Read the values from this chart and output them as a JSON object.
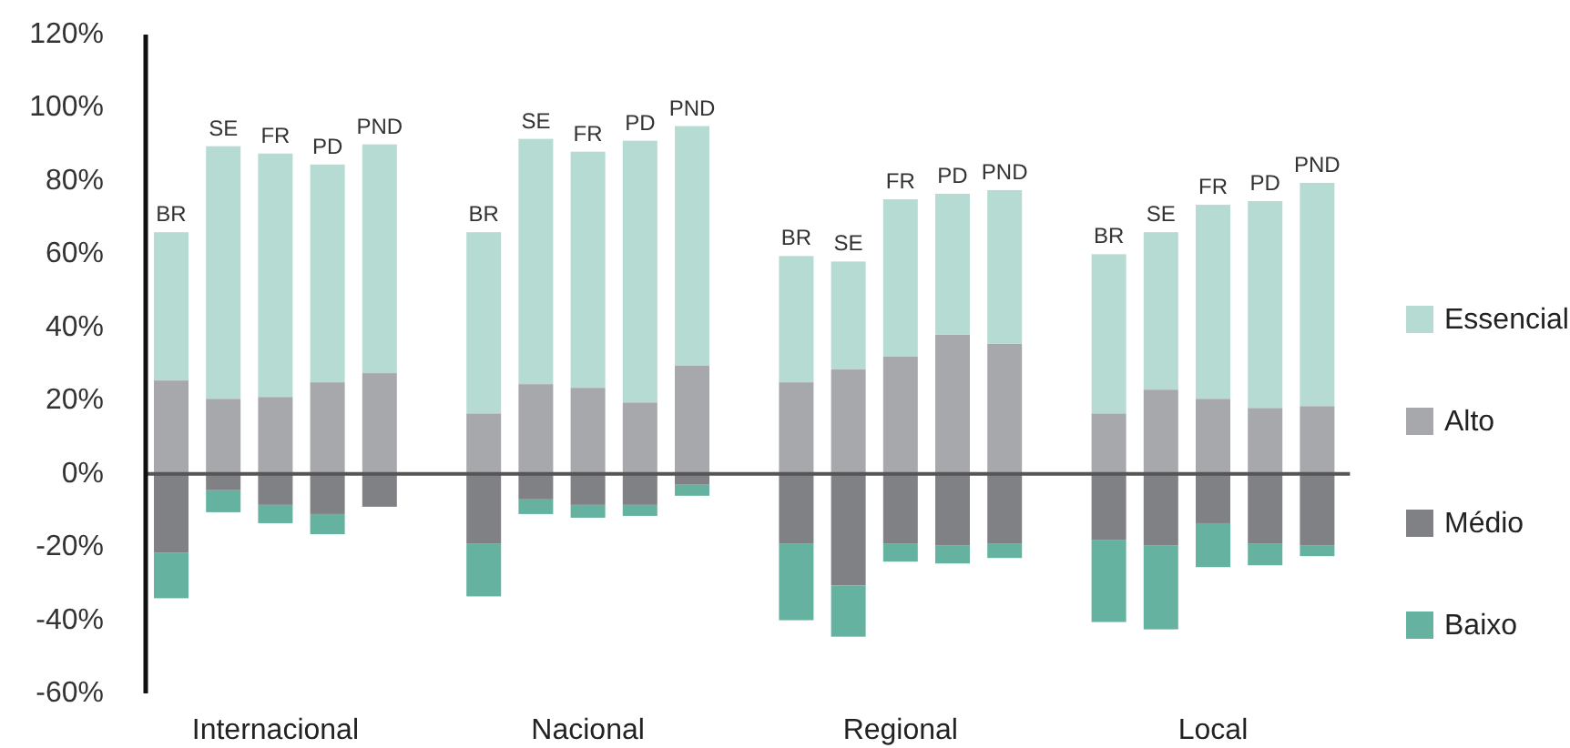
{
  "chart_data": {
    "type": "bar",
    "stacked": true,
    "legend": "right",
    "categories": [
      "BR",
      "SE",
      "FR",
      "PD",
      "PND",
      null,
      "BR",
      "SE",
      "FR",
      "PD",
      "PND",
      null,
      "BR",
      "SE",
      "FR",
      "PD",
      "PND",
      null,
      "BR",
      "SE",
      "FR",
      "PD",
      "PND"
    ],
    "annotations": [
      "Internacional",
      "Nacional",
      "Regional",
      "Local"
    ],
    "ylim": [
      -60,
      120
    ],
    "yticks": [
      {
        "value": -60,
        "label": "-60%"
      },
      {
        "value": -40,
        "label": "-40%"
      },
      {
        "value": -20,
        "label": "-20%"
      },
      {
        "value": 0,
        "label": "0%"
      },
      {
        "value": 20,
        "label": "20%"
      },
      {
        "value": 40,
        "label": "40%"
      },
      {
        "value": 60,
        "label": "60%"
      },
      {
        "value": 80,
        "label": "80%"
      },
      {
        "value": 100,
        "label": "100%"
      },
      {
        "value": 120,
        "label": "120%"
      }
    ],
    "series": [
      {
        "name": "Alto",
        "color": "#a7a8ac",
        "values": [
          25.5,
          20.5,
          21,
          25,
          27.5,
          null,
          16.5,
          24.5,
          23.5,
          19.5,
          29.5,
          null,
          25,
          28.5,
          32,
          38,
          35.5,
          null,
          16.5,
          23,
          20.5,
          18,
          18.5
        ]
      },
      {
        "name": "Essencial",
        "color": "#b5dbd2",
        "values": [
          40.5,
          69,
          66.5,
          59.5,
          62.5,
          null,
          49.5,
          67,
          64.5,
          71.5,
          65.5,
          null,
          34.5,
          29.5,
          43,
          38.5,
          42,
          null,
          43.5,
          43,
          53,
          56.5,
          61
        ]
      },
      {
        "name": "Médio",
        "color": "#808185",
        "values": [
          -21.5,
          -4.5,
          -8.5,
          -11,
          -9,
          null,
          -19,
          -7,
          -8.5,
          -8.5,
          -3,
          null,
          -19,
          -30.5,
          -19,
          -19.5,
          -19,
          null,
          -18,
          -19.5,
          -13.5,
          -19,
          -19.5
        ]
      },
      {
        "name": "Baixo",
        "color": "#65b2a0",
        "values": [
          -12.5,
          -6,
          -5,
          -5.5,
          0,
          null,
          -14.5,
          -4,
          -3.5,
          -3,
          -3,
          null,
          -21,
          -14,
          -5,
          -5,
          -4,
          null,
          -22.5,
          -23,
          -12,
          -6,
          -3
        ]
      }
    ]
  }
}
